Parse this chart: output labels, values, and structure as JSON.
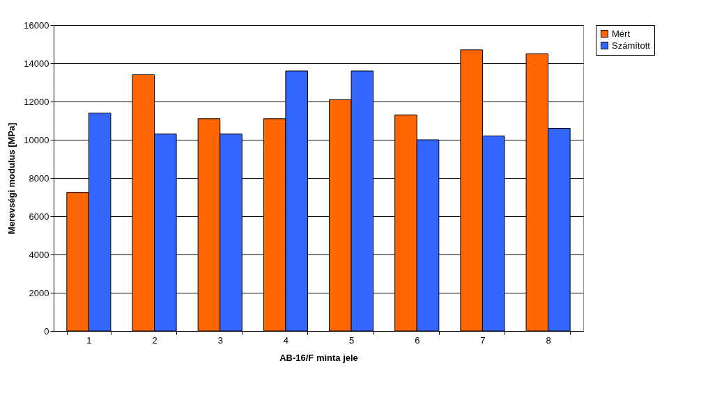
{
  "chart_data": {
    "type": "bar",
    "xlabel": "AB-16/F minta jele",
    "ylabel": "Merevségi modulus [MPa]",
    "categories": [
      "1",
      "2",
      "3",
      "4",
      "5",
      "6",
      "7",
      "8"
    ],
    "series": [
      {
        "name": "Mért",
        "color": "#ff6600",
        "values": [
          7250,
          13400,
          11100,
          11100,
          12100,
          11300,
          14700,
          14500
        ]
      },
      {
        "name": "Számított",
        "color": "#3366ff",
        "values": [
          11400,
          10300,
          10300,
          13600,
          13600,
          10000,
          10200,
          10600
        ]
      }
    ],
    "ylim": [
      0,
      16000
    ],
    "yticks": [
      0,
      2000,
      4000,
      6000,
      8000,
      10000,
      12000,
      14000,
      16000
    ],
    "grid": "y",
    "legend": "right"
  }
}
